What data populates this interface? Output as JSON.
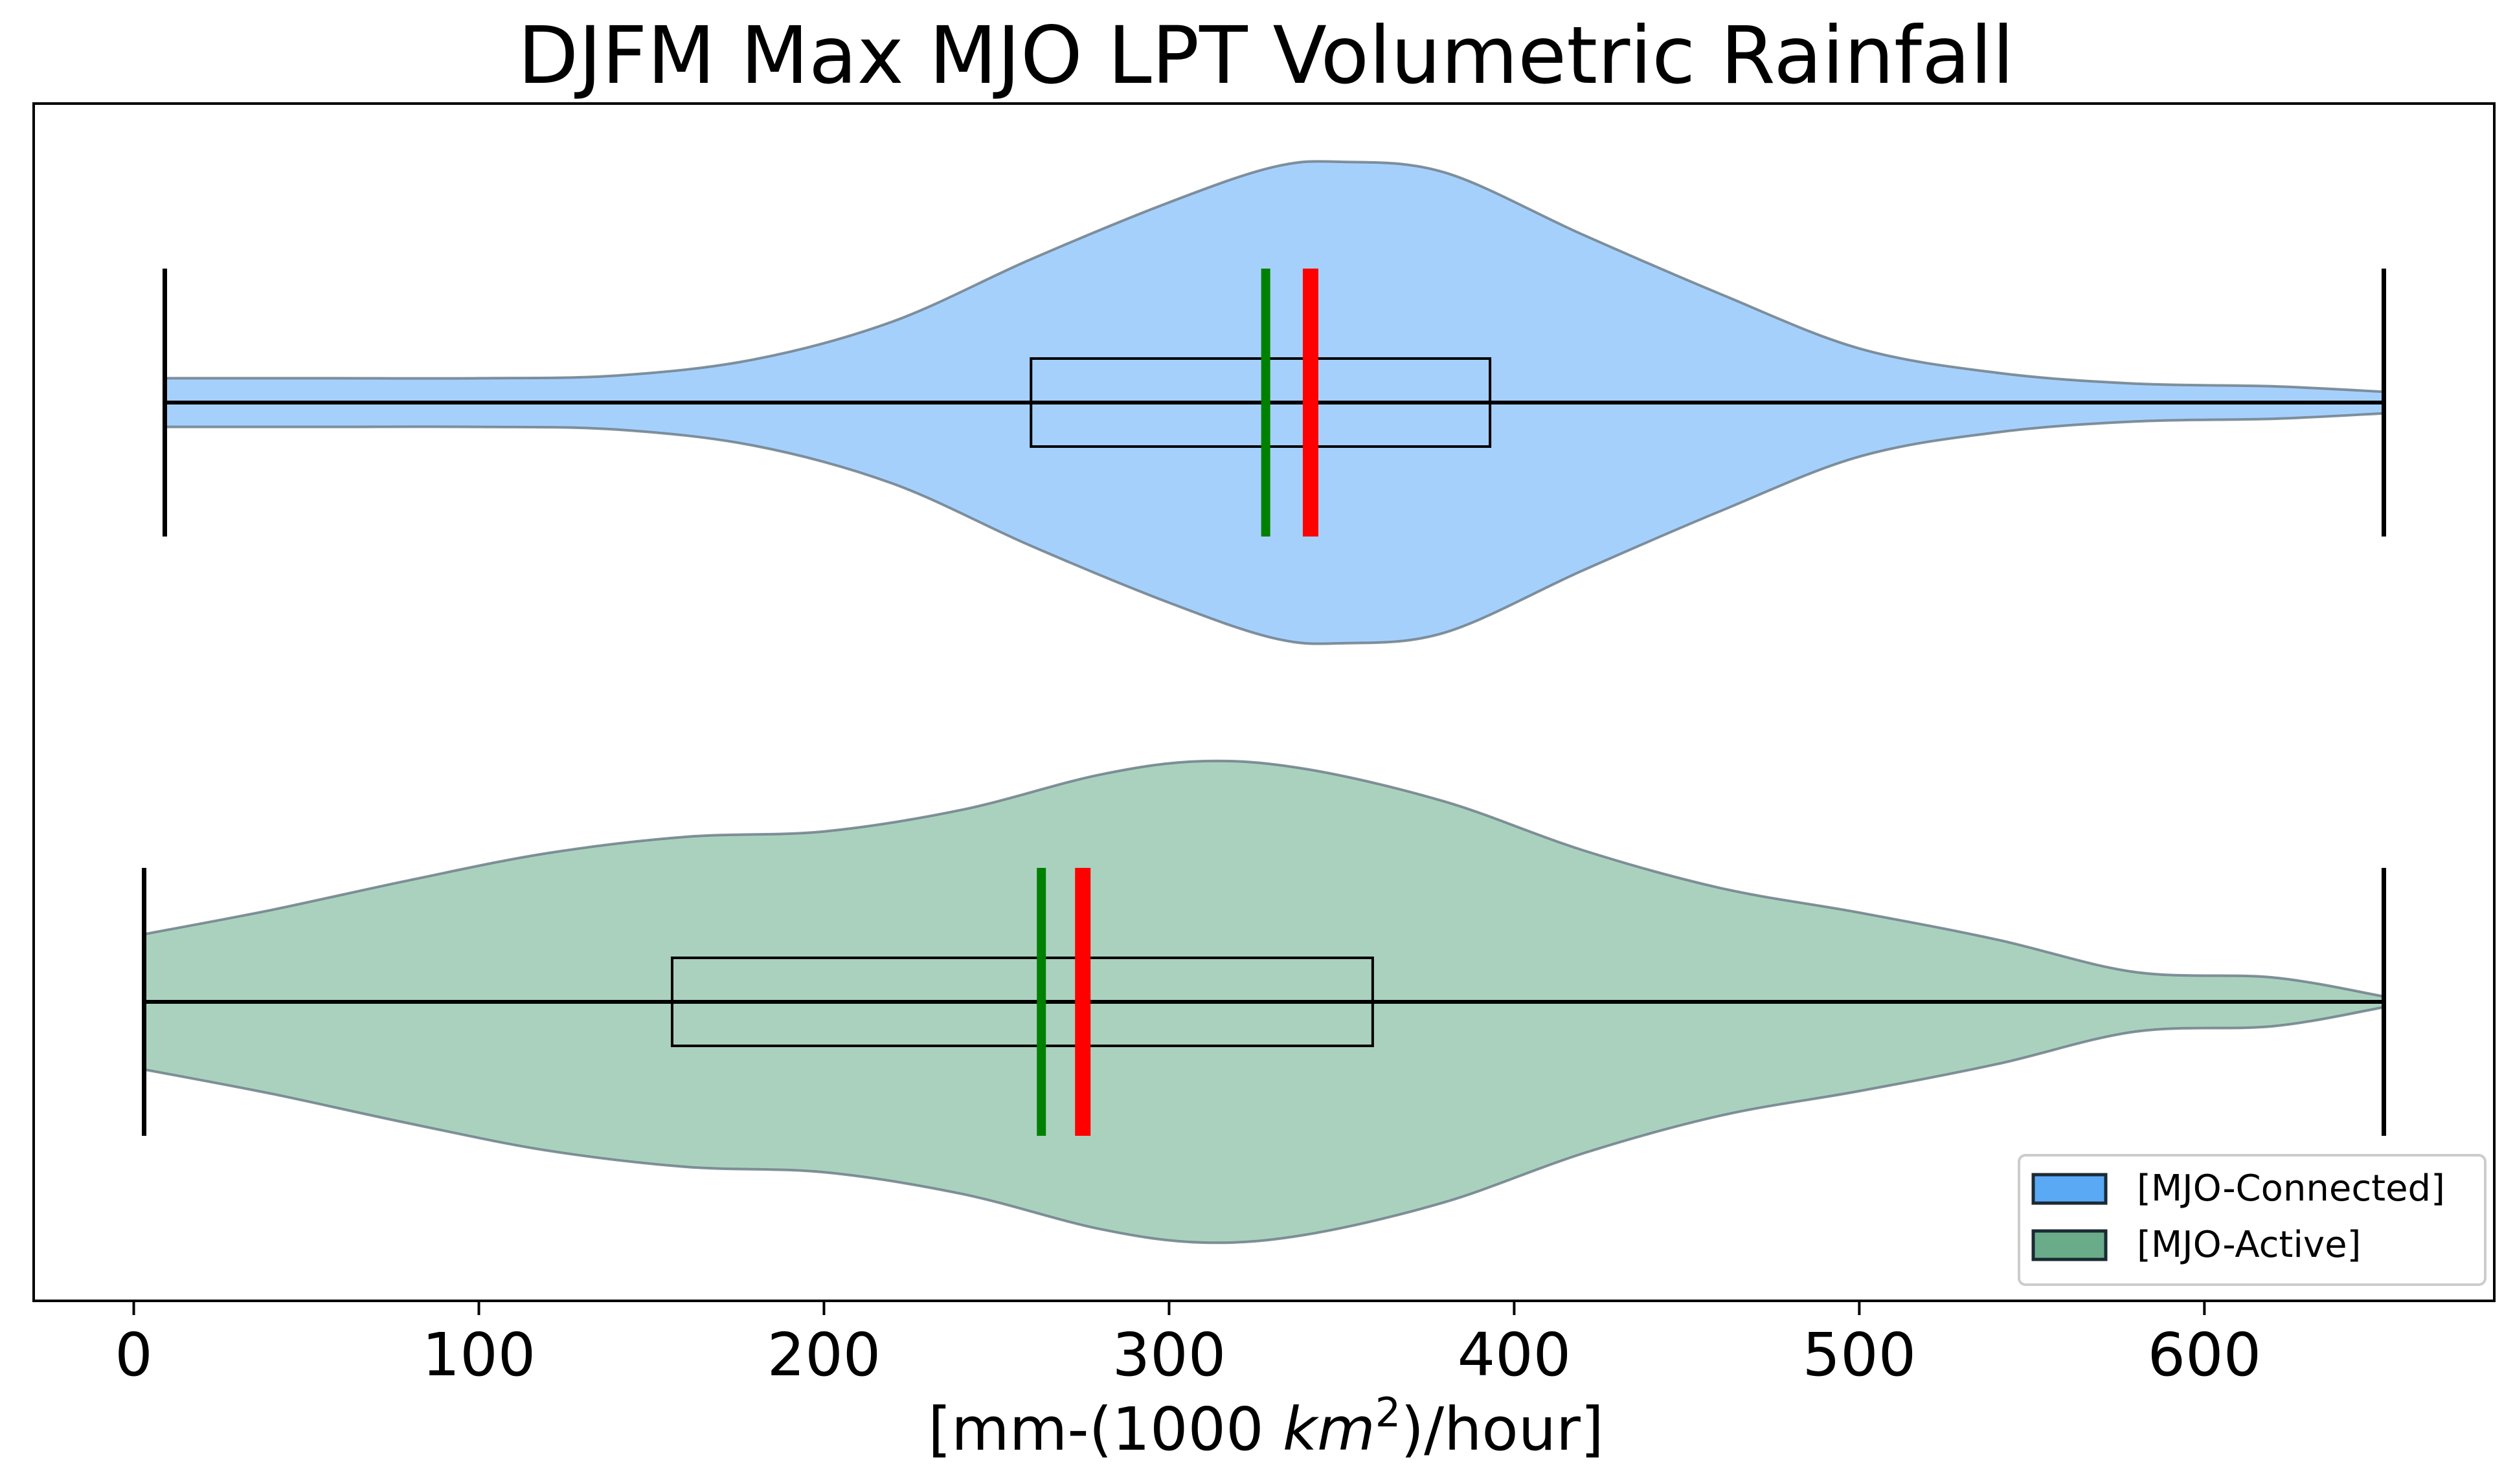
{
  "chart_data": {
    "type": "violin",
    "title": "DJFM Max MJO LPT Volumetric Rainfall",
    "xlabel_prefix": "[mm-(1000 ",
    "xlabel_math": "km",
    "xlabel_sup": "2",
    "xlabel_suffix": ")/hour]",
    "xlim": [
      -29,
      684
    ],
    "xticks": [
      0,
      100,
      200,
      300,
      400,
      500,
      600
    ],
    "xtick_labels": [
      "0",
      "100",
      "200",
      "300",
      "400",
      "500",
      "600"
    ],
    "legend_position": "lower-right",
    "colors": {
      "median": "#008000",
      "mean": "#ff0000",
      "box": "#000000",
      "whisker": "#000000"
    },
    "series": [
      {
        "name": "[MJO-Connected]",
        "color": "#a6d0fc",
        "legend_color": "#5aa9f5",
        "row": 0,
        "min": 9,
        "max": 652,
        "q1": 260,
        "q3": 393,
        "median": 328,
        "mean": 341,
        "density": [
          [
            9,
            0.09
          ],
          [
            40,
            0.09
          ],
          [
            60,
            0.09
          ],
          [
            100,
            0.09
          ],
          [
            140,
            0.1
          ],
          [
            180,
            0.16
          ],
          [
            220,
            0.3
          ],
          [
            260,
            0.53
          ],
          [
            300,
            0.74
          ],
          [
            330,
            0.87
          ],
          [
            350,
            0.89
          ],
          [
            380,
            0.85
          ],
          [
            420,
            0.62
          ],
          [
            460,
            0.4
          ],
          [
            500,
            0.2
          ],
          [
            540,
            0.11
          ],
          [
            580,
            0.07
          ],
          [
            620,
            0.06
          ],
          [
            652,
            0.04
          ]
        ]
      },
      {
        "name": "[MJO-Active]",
        "color": "#aad1be",
        "legend_color": "#6aac8a",
        "row": 1,
        "min": 3,
        "max": 652,
        "q1": 156,
        "q3": 359,
        "median": 263,
        "mean": 275,
        "density": [
          [
            3,
            0.25
          ],
          [
            40,
            0.34
          ],
          [
            80,
            0.45
          ],
          [
            120,
            0.55
          ],
          [
            160,
            0.61
          ],
          [
            200,
            0.63
          ],
          [
            240,
            0.71
          ],
          [
            280,
            0.84
          ],
          [
            310,
            0.89
          ],
          [
            340,
            0.86
          ],
          [
            380,
            0.74
          ],
          [
            420,
            0.56
          ],
          [
            460,
            0.42
          ],
          [
            500,
            0.33
          ],
          [
            540,
            0.23
          ],
          [
            580,
            0.11
          ],
          [
            620,
            0.09
          ],
          [
            652,
            0.02
          ]
        ]
      }
    ]
  }
}
